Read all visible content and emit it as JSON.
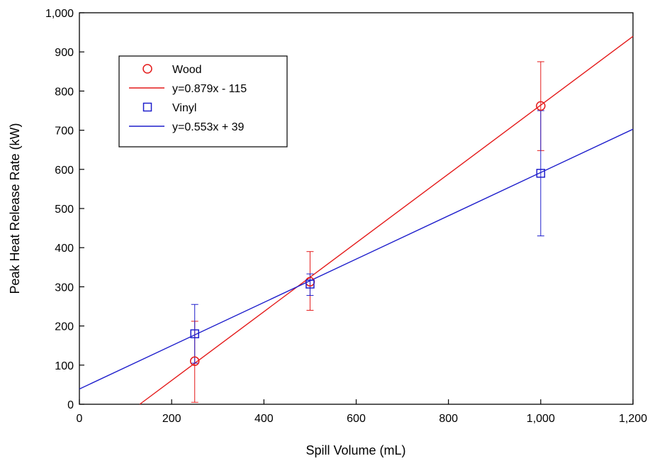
{
  "chart_data": {
    "type": "scatter",
    "title": "",
    "xlabel": "Spill Volume (mL)",
    "ylabel": "Peak Heat Release Rate (kW)",
    "xlim": [
      0,
      1200
    ],
    "ylim": [
      0,
      1000
    ],
    "xticks": [
      0,
      200,
      400,
      600,
      800,
      1000,
      1200
    ],
    "yticks": [
      0,
      100,
      200,
      300,
      400,
      500,
      600,
      700,
      800,
      900,
      1000
    ],
    "xtick_labels": [
      "0",
      "200",
      "400",
      "600",
      "800",
      "1,000",
      "1,200"
    ],
    "ytick_labels": [
      "0",
      "100",
      "200",
      "300",
      "400",
      "500",
      "600",
      "700",
      "800",
      "900",
      "1,000"
    ],
    "grid": false,
    "legend_position": "top-left",
    "series": [
      {
        "name": "Wood",
        "marker": "circle",
        "color": "#e41a1a",
        "points": [
          {
            "x": 250,
            "y": 110,
            "err_low": 5,
            "err_high": 212
          },
          {
            "x": 500,
            "y": 313,
            "err_low": 240,
            "err_high": 390
          },
          {
            "x": 1000,
            "y": 762,
            "err_low": 648,
            "err_high": 875
          }
        ],
        "fit": {
          "label": "y=0.879x - 115",
          "slope": 0.879,
          "intercept": -115
        }
      },
      {
        "name": "Vinyl",
        "marker": "square",
        "color": "#1f1fcc",
        "points": [
          {
            "x": 250,
            "y": 180,
            "err_low": 105,
            "err_high": 255
          },
          {
            "x": 500,
            "y": 307,
            "err_low": 278,
            "err_high": 333
          },
          {
            "x": 1000,
            "y": 590,
            "err_low": 430,
            "err_high": 750
          }
        ],
        "fit": {
          "label": "y=0.553x + 39",
          "slope": 0.553,
          "intercept": 39
        }
      }
    ]
  }
}
